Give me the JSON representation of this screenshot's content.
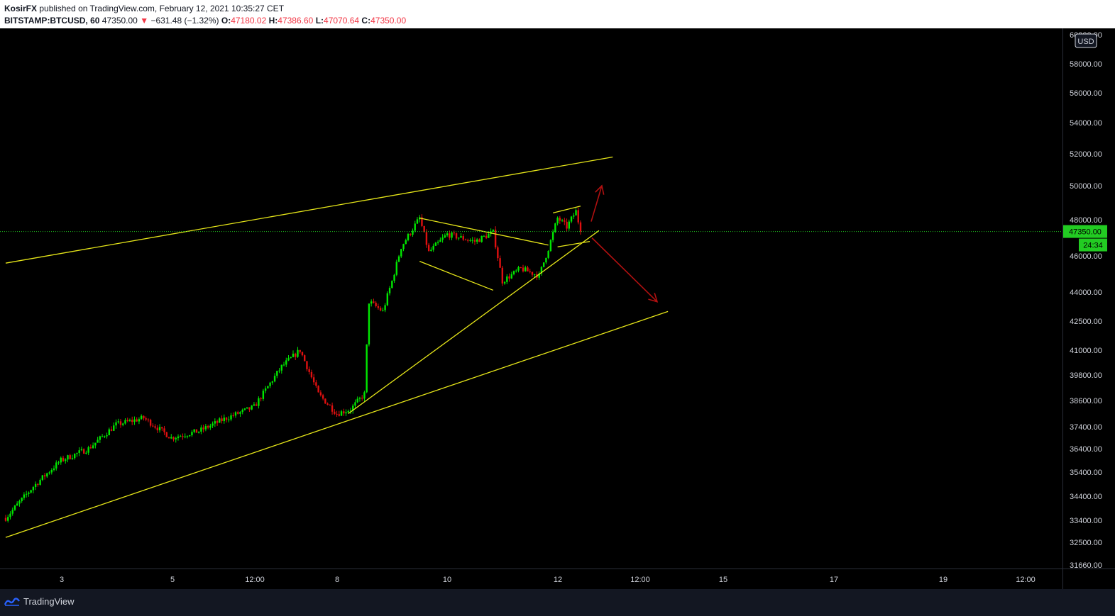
{
  "header": {
    "author": "KosirFX",
    "published_text": "published on TradingView.com, February 12, 2021 10:35:27 CET",
    "symbol": "BITSTAMP:BTCUSD, 60",
    "last": "47350.00",
    "change": "−631.48 (−1.32%)",
    "o_label": "O:",
    "o_value": "47180.02",
    "h_label": "H:",
    "h_value": "47386.60",
    "l_label": "L:",
    "l_value": "47070.64",
    "c_label": "C:",
    "c_value": "47350.00"
  },
  "footer": {
    "brand": "TradingView"
  },
  "colors": {
    "up": "#00e600",
    "down": "#e01010",
    "trendline": "#e6e619",
    "arrow": "#b01010",
    "price_line": "#1fc41f",
    "axis_text": "#d1d4dc"
  },
  "chart_data": {
    "type": "candlestick",
    "symbol": "BITSTAMP:BTCUSD",
    "interval": "60",
    "currency": "USD",
    "last_price": "47350.00",
    "countdown": "24:34",
    "y_ticks": [
      "60000.00",
      "58000.00",
      "56000.00",
      "54000.00",
      "52000.00",
      "50000.00",
      "48000.00",
      "46000.00",
      "44000.00",
      "42500.00",
      "41000.00",
      "39800.00",
      "38600.00",
      "37400.00",
      "36400.00",
      "35400.00",
      "34400.00",
      "33400.00",
      "32500.00",
      "31660.00"
    ],
    "x_ticks": [
      "3",
      "5",
      "12:00",
      "8",
      "10",
      "12",
      "12:00",
      "15",
      "17",
      "19",
      "12:00"
    ],
    "series_points": [
      [
        "Feb 2 00:00",
        33500
      ],
      [
        "Feb 2 12:00",
        34800
      ],
      [
        "Feb 3 00:00",
        35900
      ],
      [
        "Feb 3 12:00",
        36400
      ],
      [
        "Feb 4 00:00",
        37500
      ],
      [
        "Feb 4 12:00",
        37800
      ],
      [
        "Feb 5 00:00",
        36900
      ],
      [
        "Feb 5 12:00",
        37200
      ],
      [
        "Feb 6 00:00",
        37800
      ],
      [
        "Feb 6 12:00",
        38300
      ],
      [
        "Feb 7 00:00",
        40200
      ],
      [
        "Feb 7 08:00",
        41000
      ],
      [
        "Feb 7 16:00",
        38900
      ],
      [
        "Feb 8 00:00",
        38000
      ],
      [
        "Feb 8 06:00",
        38200
      ],
      [
        "Feb 8 12:00",
        38900
      ],
      [
        "Feb 8 14:00",
        43500
      ],
      [
        "Feb 8 20:00",
        43000
      ],
      [
        "Feb 9 00:00",
        44600
      ],
      [
        "Feb 9 04:00",
        46500
      ],
      [
        "Feb 9 12:00",
        48100
      ],
      [
        "Feb 9 16:00",
        46200
      ],
      [
        "Feb 10 00:00",
        47200
      ],
      [
        "Feb 10 12:00",
        46800
      ],
      [
        "Feb 10 20:00",
        47300
      ],
      [
        "Feb 11 00:00",
        44600
      ],
      [
        "Feb 11 08:00",
        45300
      ],
      [
        "Feb 11 16:00",
        44900
      ],
      [
        "Feb 11 20:00",
        46400
      ],
      [
        "Feb 12 00:00",
        48100
      ],
      [
        "Feb 12 04:00",
        47600
      ],
      [
        "Feb 12 08:00",
        48500
      ],
      [
        "Feb 12 10:00",
        47350
      ]
    ],
    "drawings": {
      "channel_upper": [
        [
          "Feb 2 00:00",
          45600
        ],
        [
          "Feb 13 00:00",
          51800
        ]
      ],
      "channel_lower": [
        [
          "Feb 2 00:00",
          32700
        ],
        [
          "Feb 14 00:00",
          43000
        ]
      ],
      "rising_trendline": [
        [
          "Feb 8 05:00",
          38000
        ],
        [
          "Feb 12 18:00",
          47400
        ]
      ],
      "triangle_upper": [
        [
          "Feb 9 12:00",
          48100
        ],
        [
          "Feb 11 20:00",
          46600
        ]
      ],
      "triangle_lower": [
        [
          "Feb 9 12:00",
          45700
        ],
        [
          "Feb 10 20:00",
          44100
        ]
      ],
      "flag_upper": [
        [
          "Feb 11 22:00",
          48400
        ],
        [
          "Feb 12 10:00",
          48800
        ]
      ],
      "flag_lower": [
        [
          "Feb 12 00:00",
          46500
        ],
        [
          "Feb 12 14:00",
          46800
        ]
      ],
      "arrow_up_target": 50000,
      "arrow_down_target": 43500
    },
    "ylim": [
      31660,
      60000
    ],
    "grid": false,
    "legend": "none"
  }
}
